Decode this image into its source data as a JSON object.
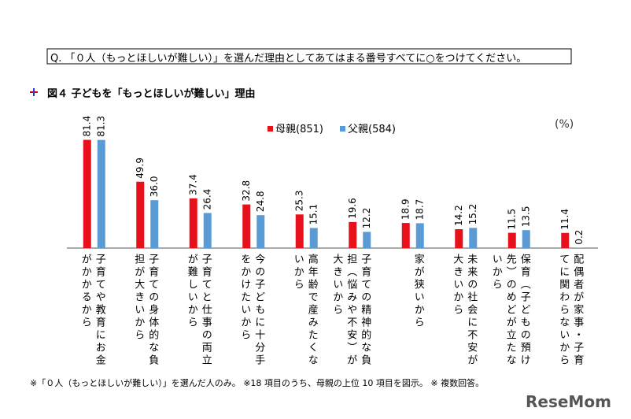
{
  "question": "Q. 「０人（もっとほしいが難しい）」を選んだ理由としてあてはまる番号すべてに○をつけてください。",
  "chart_data": {
    "type": "bar",
    "title": "図４ 子どもを「もっとほしいが難しい」理由",
    "unit": "(%)",
    "categories": [
      "子育てや教育にお金がかかるから",
      "子育ての身体的な負担が大きいから",
      "子育てと仕事の両立が難しいから",
      "今の子どもに十分手をかけたいから",
      "高年齢で産みたくないから",
      "子育ての精神的な負担（悩みや不安）が大きいから",
      "家が狭いから",
      "未来の社会に不安が大きいから",
      "保育（子どもの預け先）のめどが立たないから",
      "配偶者が家事・子育てに関わらないから"
    ],
    "series": [
      {
        "name": "母親(851)",
        "color": "#e8111b",
        "values": [
          81.4,
          49.9,
          37.4,
          32.8,
          25.3,
          19.6,
          18.9,
          14.2,
          11.5,
          11.4
        ]
      },
      {
        "name": "父親(584)",
        "color": "#5b9bd5",
        "values": [
          81.3,
          36.0,
          26.4,
          24.8,
          15.1,
          12.2,
          18.7,
          15.2,
          13.5,
          0.2
        ],
        "value_labels": [
          "81.3",
          "36.0",
          "26.4",
          "24.8",
          "15.1",
          "12.2",
          "18.7",
          "15.2",
          "13.5",
          "0.2"
        ]
      }
    ],
    "ylim": [
      0,
      90
    ]
  },
  "footnote": "※「０人（もっとほしいが難しい）」を選んだ人のみ。 ※18 項目のうち、母親の上位 10 項目を図示。 ※ 複数回答。",
  "watermark": "ReseMom"
}
